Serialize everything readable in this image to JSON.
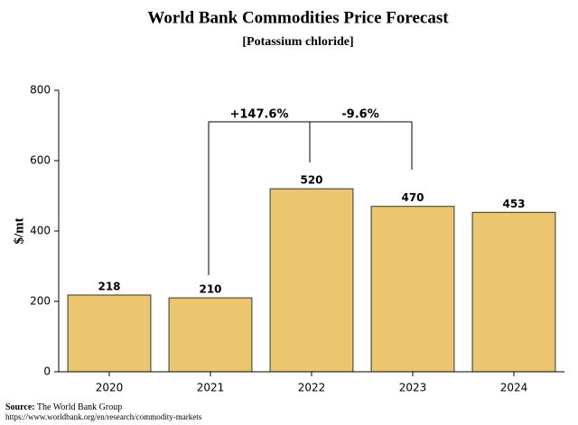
{
  "chart_data": {
    "type": "bar",
    "title": "World Bank Commodities Price Forecast",
    "subtitle": "[Potassium chloride]",
    "y_label": "$/mt",
    "categories": [
      "2020",
      "2021",
      "2022",
      "2023",
      "2024"
    ],
    "values": [
      218,
      210,
      520,
      470,
      453
    ],
    "color": "#ecc66e",
    "ylim": [
      0,
      800
    ],
    "yticks": [
      0,
      200,
      400,
      600,
      800
    ],
    "grid": false,
    "annotations": [
      "+147.6%",
      "-9.6%"
    ],
    "source_label": "Source:",
    "source_text": "The World Bank Group",
    "source_url": "https://www.worldbank.org/en/research/commodity-markets"
  }
}
